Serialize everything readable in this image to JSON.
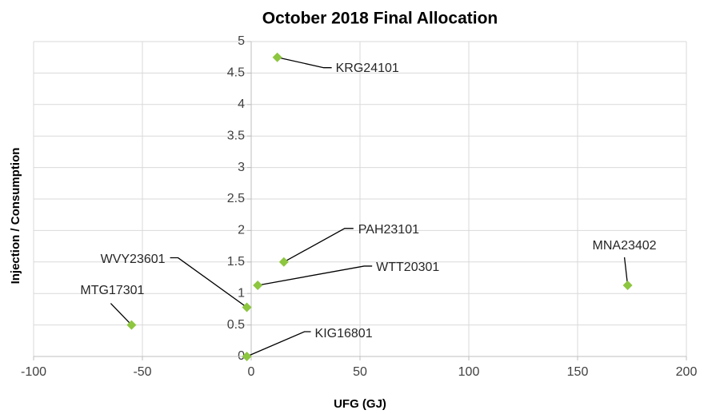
{
  "chart_data": {
    "type": "scatter",
    "title": "October 2018 Final Allocation",
    "x_label": "UFG (GJ)",
    "y_label": "Injection / Consumption",
    "labels": [
      "KRG24101",
      "PAH23101",
      "WTT20301",
      "WVY23601",
      "MTG17301",
      "KIG16801",
      "MNA23402"
    ],
    "x": [
      12,
      15,
      3,
      -2,
      -55,
      -2,
      173
    ],
    "values": [
      4.75,
      1.5,
      1.13,
      0.78,
      0.5,
      0,
      1.13
    ],
    "color": "#8dc63f",
    "xlim": [
      -100,
      200
    ],
    "xticks": [
      -100,
      -50,
      0,
      50,
      100,
      150,
      200
    ],
    "ylim": [
      0,
      5
    ],
    "yticks": [
      0,
      0.5,
      1,
      1.5,
      2,
      2.5,
      3,
      3.5,
      4,
      4.5,
      5
    ],
    "grid": true
  }
}
